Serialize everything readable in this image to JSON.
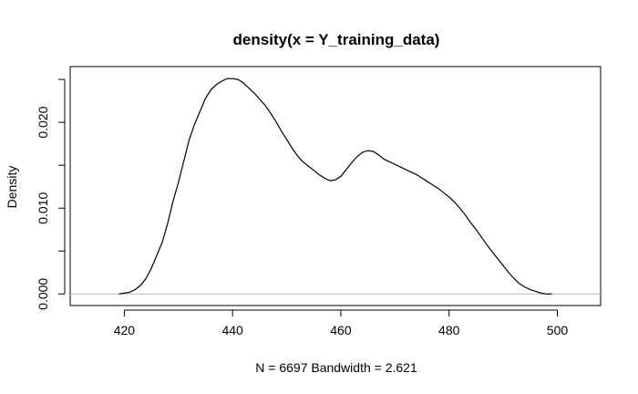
{
  "chart_data": {
    "type": "line",
    "title": "density(x = Y_training_data)",
    "xlabel": "N = 6697   Bandwidth = 2.621",
    "ylabel": "Density",
    "xlim": [
      410,
      508
    ],
    "ylim": [
      -0.00135,
      0.0265
    ],
    "x_ticks": [
      420,
      440,
      460,
      480,
      500
    ],
    "x_tick_labels": [
      "420",
      "440",
      "460",
      "480",
      "500"
    ],
    "y_ticks": [
      0.0,
      0.005,
      0.01,
      0.015,
      0.02,
      0.025
    ],
    "y_tick_labels": [
      "0.000",
      "0.010",
      "0.020"
    ],
    "baseline": 0,
    "grid": false,
    "series": [
      {
        "x": [
          419,
          420,
          421,
          422,
          423,
          424,
          425,
          426,
          427,
          428,
          429,
          430,
          431,
          432,
          433,
          434,
          435,
          436,
          437,
          438,
          439,
          440,
          441,
          442,
          443,
          444,
          445,
          446,
          447,
          448,
          449,
          450,
          451,
          452,
          453,
          454,
          455,
          456,
          457,
          458,
          459,
          460,
          461,
          462,
          463,
          464,
          465,
          466,
          467,
          468,
          469,
          470,
          471,
          472,
          473,
          474,
          475,
          476,
          477,
          478,
          479,
          480,
          481,
          482,
          483,
          484,
          485,
          486,
          487,
          488,
          489,
          490,
          491,
          492,
          493,
          494,
          495,
          496,
          497,
          498,
          499
        ],
        "y": [
          0.0,
          0.0001,
          0.0002,
          0.0005,
          0.001,
          0.0018,
          0.003,
          0.0045,
          0.006,
          0.0082,
          0.0108,
          0.013,
          0.0155,
          0.018,
          0.0198,
          0.0213,
          0.0228,
          0.0238,
          0.0244,
          0.0248,
          0.0251,
          0.0251,
          0.025,
          0.0246,
          0.024,
          0.0234,
          0.0227,
          0.022,
          0.0211,
          0.0201,
          0.019,
          0.018,
          0.017,
          0.0161,
          0.0154,
          0.0149,
          0.0144,
          0.0139,
          0.0135,
          0.0132,
          0.0133,
          0.0137,
          0.0145,
          0.0153,
          0.016,
          0.0165,
          0.0167,
          0.0166,
          0.0162,
          0.0157,
          0.0154,
          0.0151,
          0.0148,
          0.0145,
          0.0142,
          0.0139,
          0.0135,
          0.0131,
          0.0127,
          0.0123,
          0.0118,
          0.0113,
          0.0107,
          0.01,
          0.0092,
          0.0083,
          0.0075,
          0.0066,
          0.0057,
          0.0049,
          0.0041,
          0.0033,
          0.0025,
          0.0018,
          0.0012,
          0.0008,
          0.0005,
          0.0003,
          0.0001,
          0.0,
          0.0
        ]
      }
    ]
  }
}
